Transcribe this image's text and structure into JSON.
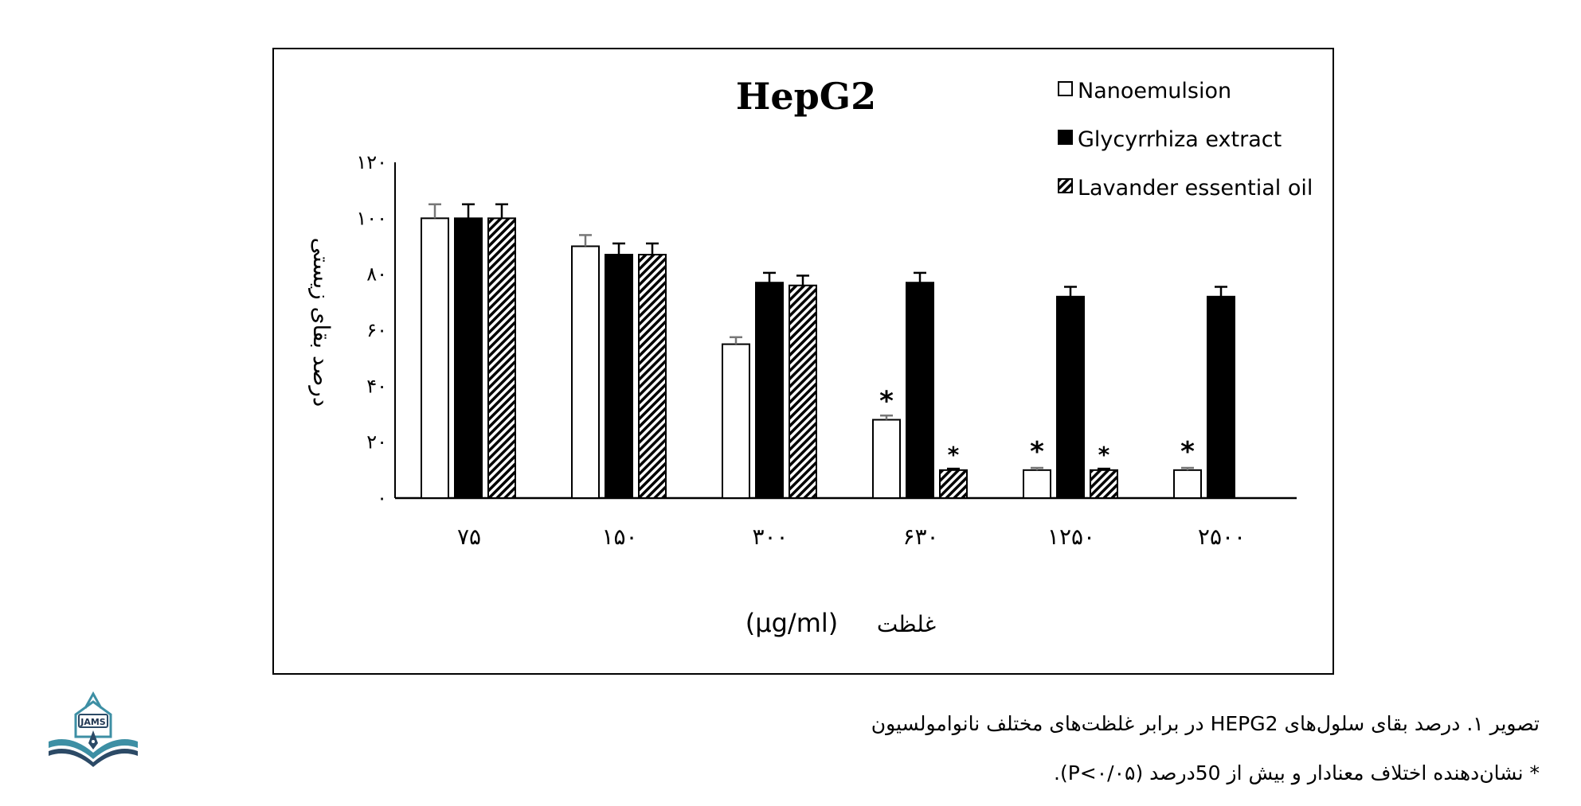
{
  "chart_data": {
    "type": "bar",
    "title": "HepG2",
    "ylabel": "درصد بقای زیستی",
    "xlabel": "غلظت",
    "xlabel_unit": "(μg/ml)",
    "categories": [
      "۷۵",
      "۱۵۰",
      "۳۰۰",
      "۶۳۰",
      "۱۲۵۰",
      "۲۵۰۰"
    ],
    "ylim": [
      0,
      120
    ],
    "yticks": [
      0,
      20,
      40,
      60,
      80,
      100,
      120
    ],
    "ytick_labels": [
      "۰",
      "۲۰",
      "۴۰",
      "۶۰",
      "۸۰",
      "۱۰۰",
      "۱۲۰"
    ],
    "grid": false,
    "legend_position": "top-right",
    "series": [
      {
        "name": "Nanoemulsion",
        "style": "white",
        "values": [
          100,
          90,
          55,
          28,
          10,
          10
        ],
        "errors": [
          5,
          4,
          2.5,
          1.5,
          0.8,
          0.8
        ],
        "significant": [
          false,
          false,
          false,
          true,
          true,
          true
        ]
      },
      {
        "name": "Glycyrrhiza extract",
        "style": "black",
        "values": [
          100,
          87,
          77,
          77,
          72,
          72
        ],
        "errors": [
          5,
          4,
          3.5,
          3.5,
          3.5,
          3.5
        ],
        "significant": [
          false,
          false,
          false,
          false,
          false,
          false
        ]
      },
      {
        "name": "Lavander essential oil",
        "style": "hatched",
        "values": [
          100,
          87,
          76,
          10,
          10,
          null
        ],
        "errors": [
          5,
          4,
          3.5,
          0.5,
          0.5,
          null
        ],
        "significant": [
          false,
          false,
          false,
          true,
          true,
          false
        ]
      }
    ],
    "significance_marker": "*"
  },
  "caption": {
    "line1": "تصویر ۱. درصد بقای سلول‌های HEPG2 در برابر غلظت‌های مختلف نانوامولسیون",
    "line2": "* نشان‌دهنده اختلاف معنادار و بیش از 50درصد (P<۰/۰۵)."
  },
  "logo": {
    "text": "JAMS"
  },
  "colors": {
    "axis": "#000000",
    "errorbar_white": "#777777",
    "fill_black": "#000000",
    "fill_white": "#ffffff"
  }
}
